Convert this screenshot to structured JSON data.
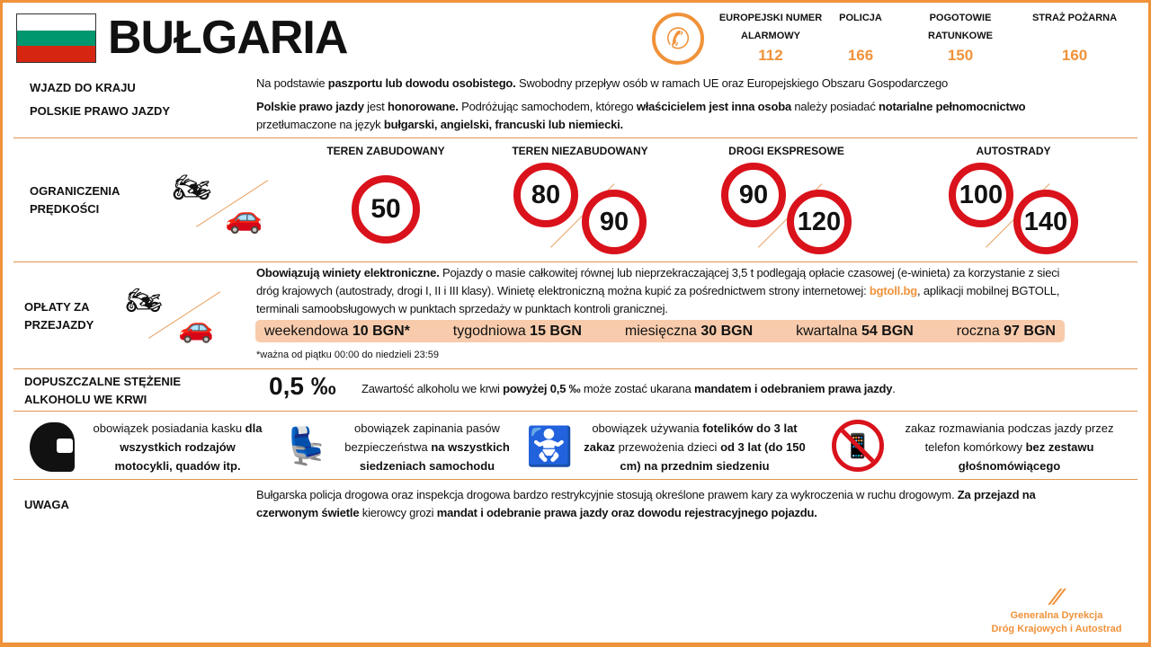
{
  "header": {
    "country": "BUŁGARIA",
    "flag_colors": [
      "#ffffff",
      "#00966e",
      "#d62612"
    ],
    "accent": "#f0923a",
    "phone_icon": "phone-icon",
    "emergency": [
      {
        "label": "EUROPEJSKI  NUMER ALARMOWY",
        "number": "112"
      },
      {
        "label": "POLICJA",
        "number": "166"
      },
      {
        "label": "POGOTOWIE RATUNKOWE",
        "number": "150"
      },
      {
        "label": "STRAŻ  POŻARNA",
        "number": "160"
      }
    ]
  },
  "entry": {
    "label": "WJAZD DO KRAJU",
    "text": [
      {
        "t": "Na podstawie "
      },
      {
        "t": "paszportu lub dowodu osobistego.",
        "b": 1
      },
      {
        "t": " Swobodny przepływ  osób w ramach UE oraz  Europejskiego Obszaru Gospodarczego"
      }
    ]
  },
  "license": {
    "label": "POLSKIE PRAWO JAZDY",
    "text": [
      {
        "t": "Polskie prawo jazdy",
        "b": 1
      },
      {
        "t": " jest "
      },
      {
        "t": "honorowane.",
        "b": 1
      },
      {
        "t": " Podróżując samochodem,  którego "
      },
      {
        "t": "właścicielem jest inna osoba",
        "b": 1
      },
      {
        "t": " należy posiadać "
      },
      {
        "t": "notarialne pełnomocnictwo",
        "b": 1
      },
      {
        "t": " przetłumaczone na język "
      },
      {
        "t": "bułgarski, angielski, francuski lub niemiecki.",
        "b": 1
      }
    ]
  },
  "speed": {
    "label": "OGRANICZENIA PRĘDKOŚCI",
    "columns": [
      {
        "title": "TEREN ZABUDOWANY",
        "moto": "50",
        "car": "50"
      },
      {
        "title": "TEREN NIEZABUDOWANY",
        "moto": "80",
        "car": "90"
      },
      {
        "title": "DROGI EKSPRESOWE",
        "moto": "90",
        "car": "120"
      },
      {
        "title": "AUTOSTRADY",
        "moto": "100",
        "car": "140"
      }
    ]
  },
  "tolls": {
    "label": "OPŁATY ZA PRZEJAZDY",
    "text": [
      {
        "t": "Obowiązują winiety elektroniczne.",
        "b": 1
      },
      {
        "t": " Pojazdy o masie całkowitej równej  lub nieprzekraczającej 3,5 t podlegają opłacie czasowej (e-winieta) za korzystanie z sieci dróg krajowych (autostrady, drogi I, II i III klasy). Winietę elektroniczną można kupić za pośrednictwem strony internetowej:  "
      },
      {
        "t": "bgtoll.bg",
        "b": 1,
        "c": "#f0923a"
      },
      {
        "t": ", aplikacji mobilnej BGTOLL, terminali samoobsługowych w punktach  sprzedaży w punktach  kontroli  granicznej."
      }
    ],
    "vignettes": [
      {
        "name": "weekendowa ",
        "price": "10 BGN*"
      },
      {
        "name": "tygodniowa ",
        "price": "15 BGN"
      },
      {
        "name": "miesięczna ",
        "price": "30 BGN"
      },
      {
        "name": "kwartalna ",
        "price": "54 BGN"
      },
      {
        "name": "roczna ",
        "price": "97 BGN"
      }
    ],
    "footnote": "*ważna od piątku 00:00  do niedzieli 23:59"
  },
  "alcohol": {
    "label": "DOPUSZCZALNE STĘŻENIE ALKOHOLU WE KRWI",
    "value": "0,5 ‰",
    "text": [
      {
        "t": "Zawartość alkoholu  we krwi  "
      },
      {
        "t": "powyżej 0,5 ‰",
        "b": 1
      },
      {
        "t": " może  zostać ukarana "
      },
      {
        "t": "mandatem i odebraniem prawa jazdy",
        "b": 1
      },
      {
        "t": "."
      }
    ]
  },
  "rules": [
    {
      "icon": "helmet-icon",
      "text": [
        {
          "t": "obowiązek posiadania kasku "
        },
        {
          "t": "dla wszystkich rodzajów motocykli, quadów itp.",
          "b": 1
        }
      ]
    },
    {
      "icon": "seatbelt-icon",
      "text": [
        {
          "t": "obowiązek zapinania pasów bezpieczeństwa "
        },
        {
          "t": "na wszystkich siedzeniach samochodu",
          "b": 1
        }
      ]
    },
    {
      "icon": "child-seat-icon",
      "text": [
        {
          "t": "obowiązek używania "
        },
        {
          "t": "fotelików do 3 lat zakaz",
          "b": 1
        },
        {
          "t": " przewożenia  dzieci "
        },
        {
          "t": "od 3 lat (do 150 cm) na przednim siedzeniu",
          "b": 1
        }
      ]
    },
    {
      "icon": "no-phone-icon",
      "text": [
        {
          "t": "zakaz rozmawiania  podczas jazdy przez telefon komórkowy  "
        },
        {
          "t": "bez zestawu głośnomówiącego",
          "b": 1
        }
      ]
    }
  ],
  "note": {
    "label": "UWAGA",
    "text": [
      {
        "t": "Bułgarska policja drogowa oraz inspekcja drogowa bardzo restrykcyjnie stosują określone prawem kary za wykroczenia  w ruchu drogowym. "
      },
      {
        "t": "Za przejazd na czerwonym świetle",
        "b": 1
      },
      {
        "t": " kierowcy grozi "
      },
      {
        "t": "mandat i odebranie prawa jazdy oraz dowodu rejestracyjnego pojazdu.",
        "b": 1
      }
    ]
  },
  "logo": {
    "line1": "Generalna Dyrekcja",
    "line2": "Dróg Krajowych i Autostrad"
  }
}
